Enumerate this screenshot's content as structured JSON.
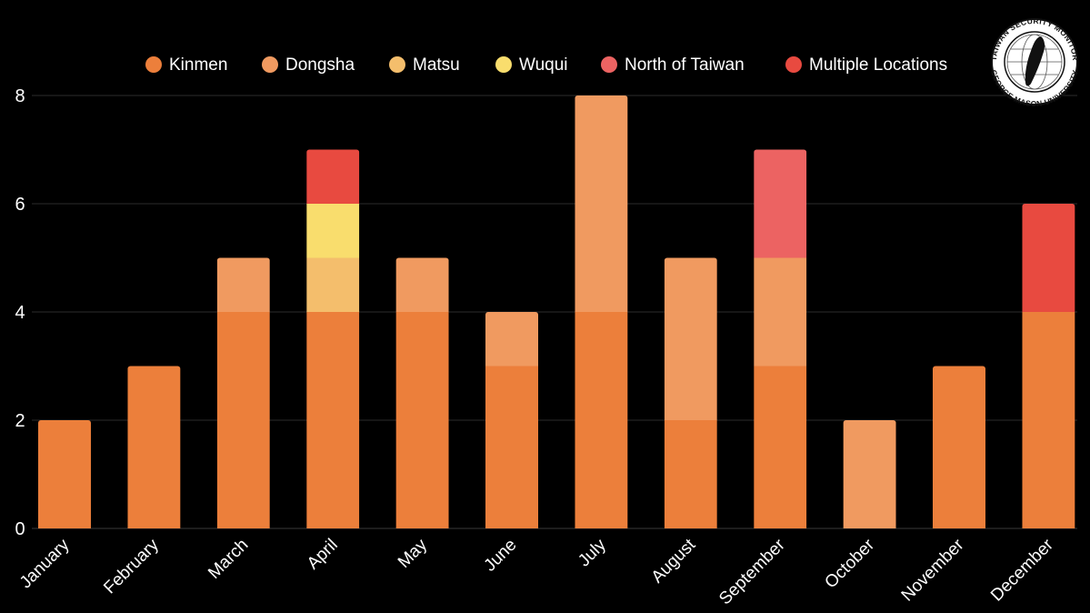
{
  "chart_data": {
    "type": "bar",
    "stacked": true,
    "categories": [
      "January",
      "February",
      "March",
      "April",
      "May",
      "June",
      "July",
      "August",
      "September",
      "October",
      "November",
      "December"
    ],
    "series": [
      {
        "name": "Kinmen",
        "color": "#ec7f3b",
        "values": [
          2,
          3,
          4,
          4,
          4,
          3,
          4,
          2,
          3,
          0,
          3,
          4
        ]
      },
      {
        "name": "Dongsha",
        "color": "#f09a60",
        "values": [
          0,
          0,
          1,
          0,
          1,
          1,
          4,
          3,
          2,
          2,
          0,
          0
        ]
      },
      {
        "name": "Matsu",
        "color": "#f4be6c",
        "values": [
          0,
          0,
          0,
          1,
          0,
          0,
          0,
          0,
          0,
          0,
          0,
          0
        ]
      },
      {
        "name": "Wuqui",
        "color": "#f9dd6d",
        "values": [
          0,
          0,
          0,
          1,
          0,
          0,
          0,
          0,
          0,
          0,
          0,
          0
        ]
      },
      {
        "name": "North of Taiwan",
        "color": "#ec6362",
        "values": [
          0,
          0,
          0,
          0,
          0,
          0,
          0,
          0,
          2,
          0,
          0,
          0
        ]
      },
      {
        "name": "Multiple Locations",
        "color": "#e84a40",
        "values": [
          0,
          0,
          0,
          1,
          0,
          0,
          0,
          0,
          0,
          0,
          0,
          2
        ]
      }
    ],
    "y_ticks": [
      0,
      2,
      4,
      6,
      8
    ],
    "ylim": [
      0,
      8
    ],
    "grid": true,
    "legend_position": "top",
    "xlabel": "",
    "ylabel": "",
    "title": ""
  },
  "logo": {
    "top_text": "TAIWAN SECURITY MONITOR",
    "bottom_text": "GEORGE MASON UNIVERSITY"
  }
}
